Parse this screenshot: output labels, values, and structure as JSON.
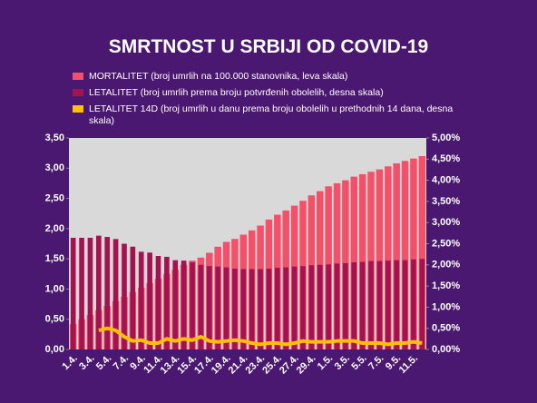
{
  "chart_data": {
    "type": "bar-line",
    "title": "SMRTNOST U SRBIJI OD COVID-19",
    "categories": [
      "1.4.",
      null,
      "3.4.",
      null,
      "5.4.",
      null,
      "7.4.",
      null,
      "9.4.",
      null,
      "11.4.",
      null,
      "13.4.",
      null,
      "15.4.",
      null,
      "17.4.",
      null,
      "19.4.",
      null,
      "21.4.",
      null,
      "23.4.",
      null,
      "25.4.",
      null,
      "27.4.",
      null,
      "29.4.",
      null,
      "1.5.",
      null,
      "3.5.",
      null,
      "5.5.",
      null,
      "7.5.",
      null,
      "9.5.",
      null,
      "11.5.",
      null
    ],
    "series": [
      {
        "name": "MORTALITET (broj umrlih na 100.000 stanovnika, leva skala)",
        "color": "#f4506a",
        "kind": "bar",
        "axis": "y",
        "values": [
          0.42,
          0.5,
          0.57,
          0.65,
          0.72,
          0.8,
          0.87,
          0.95,
          1.02,
          1.1,
          1.17,
          1.25,
          1.32,
          1.4,
          1.47,
          1.52,
          1.6,
          1.7,
          1.78,
          1.83,
          1.9,
          1.97,
          2.05,
          2.15,
          2.23,
          2.3,
          2.38,
          2.46,
          2.55,
          2.62,
          2.7,
          2.75,
          2.8,
          2.86,
          2.9,
          2.94,
          2.98,
          3.03,
          3.08,
          3.12,
          3.16,
          3.2
        ]
      },
      {
        "name": "LETALITET (broj umrlih prema broju potvrđenih obolelih, desna skala)",
        "color": "#a4124f",
        "kind": "bar",
        "axis": "y2",
        "values": [
          2.64,
          2.64,
          2.64,
          2.69,
          2.66,
          2.61,
          2.5,
          2.43,
          2.31,
          2.29,
          2.21,
          2.19,
          2.11,
          2.1,
          2.06,
          2.0,
          1.97,
          1.96,
          1.94,
          1.91,
          1.9,
          1.9,
          1.9,
          1.91,
          1.93,
          1.94,
          1.96,
          1.97,
          1.99,
          2.0,
          2.01,
          2.03,
          2.04,
          2.06,
          2.07,
          2.09,
          2.09,
          2.1,
          2.11,
          2.11,
          2.13,
          2.14
        ]
      },
      {
        "name": "LETALITET 14D (broj umrlih u danu prema broju obolelih u prethodnih 14 dana, desna skala)",
        "color": "#ffc000",
        "kind": "line",
        "axis": "y2",
        "values": [
          null,
          null,
          null,
          0.45,
          0.5,
          0.45,
          0.3,
          0.2,
          0.22,
          0.15,
          0.15,
          0.25,
          0.2,
          0.25,
          0.22,
          0.3,
          0.2,
          0.18,
          0.2,
          0.22,
          0.2,
          0.15,
          0.12,
          0.15,
          0.15,
          0.12,
          0.15,
          0.2,
          0.18,
          0.18,
          0.18,
          0.2,
          0.2,
          0.2,
          0.15,
          0.15,
          0.15,
          0.12,
          0.15,
          0.15,
          0.18,
          0.15
        ]
      }
    ],
    "ylim": [
      0,
      3.5
    ],
    "yticks": [
      {
        "value": 0,
        "label": "0,00"
      },
      {
        "value": 0.5,
        "label": "0,50"
      },
      {
        "value": 1,
        "label": "1,00"
      },
      {
        "value": 1.5,
        "label": "1,50"
      },
      {
        "value": 2,
        "label": "2,00"
      },
      {
        "value": 2.5,
        "label": "2,50"
      },
      {
        "value": 3,
        "label": "3,00"
      },
      {
        "value": 3.5,
        "label": "3,50"
      }
    ],
    "y2lim": [
      0,
      5
    ],
    "y2ticks": [
      {
        "value": 0,
        "label": "0,00%"
      },
      {
        "value": 0.5,
        "label": "0,50%"
      },
      {
        "value": 1,
        "label": "1,00%"
      },
      {
        "value": 1.5,
        "label": "1,50%"
      },
      {
        "value": 2,
        "label": "2,00%"
      },
      {
        "value": 2.5,
        "label": "2,50%"
      },
      {
        "value": 3,
        "label": "3,00%"
      },
      {
        "value": 3.5,
        "label": "3,50%"
      },
      {
        "value": 4,
        "label": "4,00%"
      },
      {
        "value": 4.5,
        "label": "4,50%"
      },
      {
        "value": 5,
        "label": "5,00%"
      }
    ]
  }
}
